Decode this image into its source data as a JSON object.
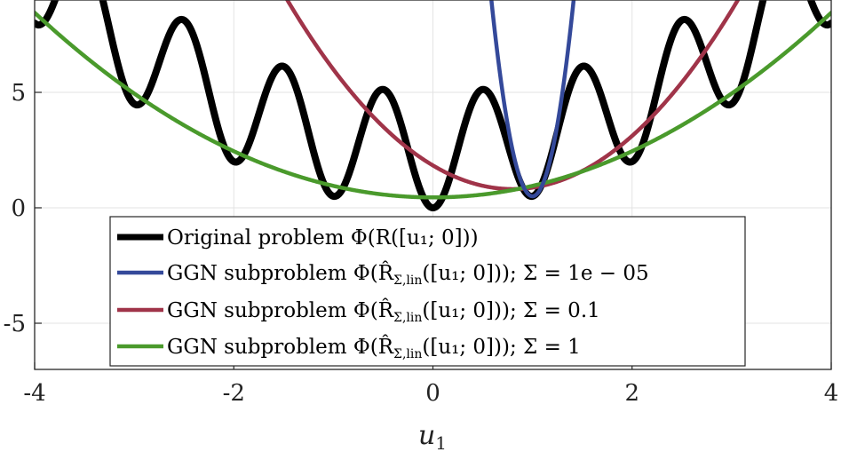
{
  "chart_data": {
    "type": "line",
    "title": "",
    "xlabel": "u_1",
    "ylabel": "",
    "xlim": [
      -4,
      4
    ],
    "ylim": [
      -7,
      9
    ],
    "xticks": [
      -4,
      -2,
      0,
      2,
      4
    ],
    "xtick_labels": [
      "-4",
      "-2",
      "0",
      "2",
      "4"
    ],
    "yticks": [
      -5,
      0,
      5
    ],
    "ytick_labels": [
      "-5",
      "0",
      "5"
    ],
    "grid": true,
    "legend_position": "bottom-center",
    "series": [
      {
        "name": "Original problem Φ(R([u₁; 0]))",
        "color": "#000000",
        "function": "u^2/2 + 2.5*(1 - cos(2*pi*u))",
        "x": [
          -4,
          -3.5,
          -3,
          -2.5,
          -2,
          -1.5,
          -1,
          -0.5,
          0,
          0.5,
          1,
          1.5,
          2,
          2.5,
          3,
          3.5,
          4
        ],
        "y": [
          8,
          11.1,
          4.5,
          8.1,
          2,
          6.1,
          0.5,
          5.1,
          0,
          5.1,
          0.5,
          6.1,
          2,
          8.1,
          4.5,
          11.1,
          8
        ]
      },
      {
        "name": "GGN subproblem Φ(R̂Σ,lin([u₁; 0])); Σ = 1e − 05",
        "color": "#34499a",
        "function": "0.5 + 49.8*(u-1)^2"
      },
      {
        "name": "GGN subproblem Φ(R̂Σ,lin([u₁; 0])); Σ = 0.1",
        "color": "#a03449",
        "function": "0.81 + 1.6*(u-0.8)^2"
      },
      {
        "name": "GGN subproblem Φ(R̂Σ,lin([u₁; 0])); Σ = 1",
        "color": "#4a9a2c",
        "function": "0.45 + 0.5*u^2"
      }
    ],
    "legend": {
      "lines": [
        {
          "prefix": "Original problem Φ(",
          "body": "R([u₁; 0]))",
          "suffix": ""
        },
        {
          "prefix": "GGN subproblem Φ(R̂",
          "body": "([u₁; 0])); Σ = 1e − 05",
          "sub": "Σ,lin"
        },
        {
          "prefix": "GGN subproblem Φ(R̂",
          "body": "([u₁; 0])); Σ = 0.1",
          "sub": "Σ,lin"
        },
        {
          "prefix": "GGN subproblem Φ(R̂",
          "body": "([u₁; 0])); Σ = 1",
          "sub": "Σ,lin"
        }
      ]
    }
  }
}
